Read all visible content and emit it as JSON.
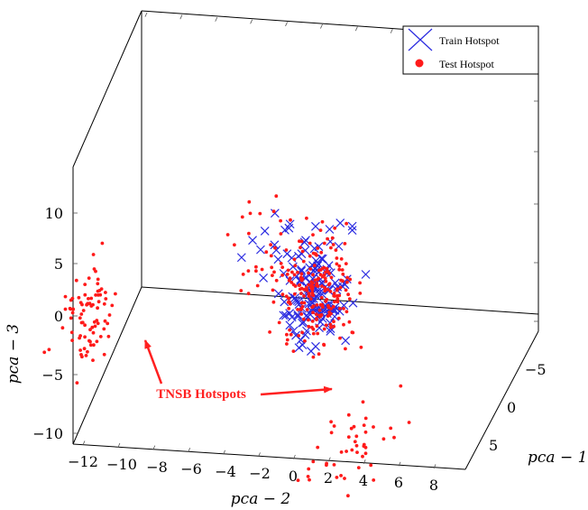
{
  "chart_data": {
    "type": "scatter",
    "projection": "3d",
    "title": "",
    "xlabel": "pca − 1",
    "ylabel": "pca − 2",
    "zlabel": "pca − 3",
    "xticks": [
      "−5",
      "0",
      "5"
    ],
    "yticks": [
      "−12",
      "−10",
      "−8",
      "−6",
      "−4",
      "−2",
      "0",
      "2",
      "4",
      "6",
      "8"
    ],
    "zticks": [
      "−10",
      "−5",
      "0",
      "5",
      "10"
    ],
    "xlim": [
      -8,
      8
    ],
    "ylim": [
      -12,
      9
    ],
    "zlim": [
      -11,
      13
    ],
    "legend_position": "top-right",
    "series": [
      {
        "name": "Train Hotspot",
        "marker": "x",
        "color": "#2a2ae0",
        "clusters": [
          {
            "center": [
              1.0,
              1.5,
              2.5
            ],
            "spread": [
              1.2,
              1.0,
              2.0
            ],
            "count": 120
          },
          {
            "center": [
              0.5,
              0.5,
              7.0
            ],
            "spread": [
              1.5,
              1.5,
              2.0
            ],
            "count": 30
          }
        ]
      },
      {
        "name": "Test Hotspot",
        "marker": "circle",
        "color": "#ff1a1a",
        "clusters": [
          {
            "center": [
              1.0,
              1.5,
              2.5
            ],
            "spread": [
              1.3,
              1.1,
              2.2
            ],
            "count": 200
          },
          {
            "center": [
              0.5,
              0.5,
              7.0
            ],
            "spread": [
              1.8,
              1.8,
              2.5
            ],
            "count": 45
          },
          {
            "center": [
              0.0,
              -12.0,
              -1.0
            ],
            "spread": [
              1.0,
              0.8,
              2.0
            ],
            "count": 85
          },
          {
            "center": [
              4.0,
              4.0,
              -9.0
            ],
            "spread": [
              2.5,
              1.5,
              0.8
            ],
            "count": 45
          }
        ]
      }
    ],
    "annotations": [
      {
        "text": "TNSB Hotspots",
        "points_to": [
          "left cluster",
          "bottom-right cluster"
        ]
      }
    ]
  }
}
